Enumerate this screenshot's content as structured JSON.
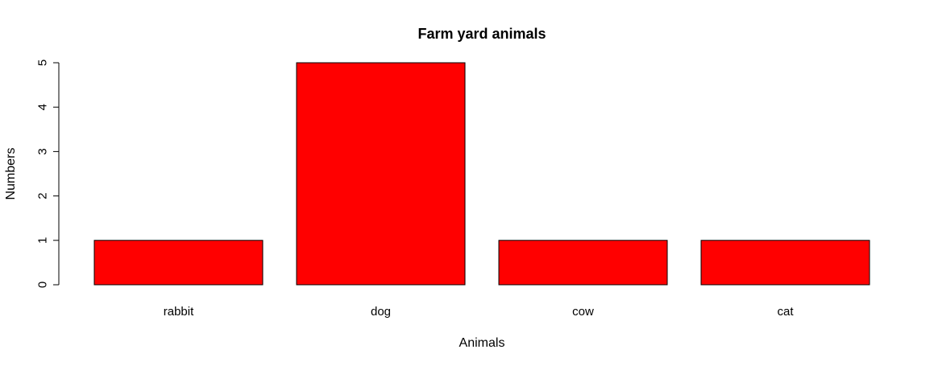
{
  "chart_data": {
    "type": "bar",
    "title": "Farm yard animals",
    "xlabel": "Animals",
    "ylabel": "Numbers",
    "categories": [
      "rabbit",
      "dog",
      "cow",
      "cat"
    ],
    "values": [
      1,
      5,
      1,
      1
    ],
    "ylim": [
      0,
      5
    ],
    "yticks": [
      0,
      1,
      2,
      3,
      4,
      5
    ],
    "bar_color": "#ff0000",
    "border_color": "#000000",
    "grid": false,
    "legend": "none"
  }
}
